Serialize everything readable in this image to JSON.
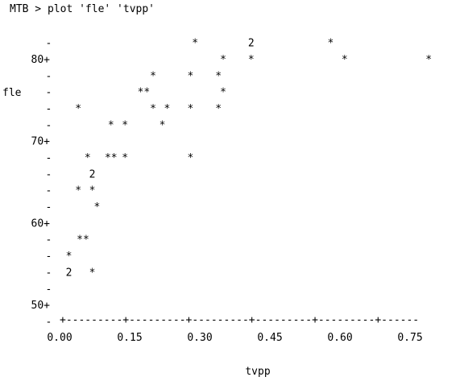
{
  "session": {
    "command": "MTB > plot 'fle' 'tvpp'"
  },
  "chart_data": {
    "type": "scatter",
    "title": "",
    "xlabel": "tvpp",
    "ylabel": "fle",
    "xlim": [
      0.0,
      0.75
    ],
    "ylim": [
      50,
      80
    ],
    "x_ticks": [
      0.0,
      0.15,
      0.3,
      0.45,
      0.6,
      0.75
    ],
    "x_tick_labels": [
      "0.00",
      "0.15",
      "0.30",
      "0.45",
      "0.60",
      "0.75"
    ],
    "y_ticks": [
      50,
      60,
      70,
      80
    ],
    "y_tick_labels": [
      "50+",
      "60+",
      "70+",
      "80+"
    ],
    "y_minor_tick": "-",
    "x_axis_rule": "+---------+---------+---------+---------+---------+------",
    "point_symbol": "*",
    "points": [
      {
        "x": 0.29,
        "y": 82,
        "symbol": "*"
      },
      {
        "x": 0.41,
        "y": 82,
        "symbol": "2"
      },
      {
        "x": 0.58,
        "y": 82,
        "symbol": "*"
      },
      {
        "x": 0.35,
        "y": 80,
        "symbol": "*"
      },
      {
        "x": 0.41,
        "y": 80,
        "symbol": "*"
      },
      {
        "x": 0.61,
        "y": 80,
        "symbol": "*"
      },
      {
        "x": 0.79,
        "y": 80,
        "symbol": "*"
      },
      {
        "x": 0.2,
        "y": 78,
        "symbol": "*"
      },
      {
        "x": 0.28,
        "y": 78,
        "symbol": "*"
      },
      {
        "x": 0.34,
        "y": 78,
        "symbol": "*"
      },
      {
        "x": 0.18,
        "y": 76,
        "symbol": "**"
      },
      {
        "x": 0.35,
        "y": 76,
        "symbol": "*"
      },
      {
        "x": 0.04,
        "y": 74,
        "symbol": "*"
      },
      {
        "x": 0.2,
        "y": 74,
        "symbol": "*"
      },
      {
        "x": 0.23,
        "y": 74,
        "symbol": "*"
      },
      {
        "x": 0.28,
        "y": 74,
        "symbol": "*"
      },
      {
        "x": 0.34,
        "y": 74,
        "symbol": "*"
      },
      {
        "x": 0.11,
        "y": 72,
        "symbol": "*"
      },
      {
        "x": 0.14,
        "y": 72,
        "symbol": "*"
      },
      {
        "x": 0.22,
        "y": 72,
        "symbol": "*"
      },
      {
        "x": 0.06,
        "y": 68,
        "symbol": "*"
      },
      {
        "x": 0.11,
        "y": 68,
        "symbol": "**"
      },
      {
        "x": 0.14,
        "y": 68,
        "symbol": "*"
      },
      {
        "x": 0.28,
        "y": 68,
        "symbol": "*"
      },
      {
        "x": 0.07,
        "y": 66,
        "symbol": "2"
      },
      {
        "x": 0.04,
        "y": 64,
        "symbol": "*"
      },
      {
        "x": 0.07,
        "y": 64,
        "symbol": "*"
      },
      {
        "x": 0.08,
        "y": 62,
        "symbol": "*"
      },
      {
        "x": 0.05,
        "y": 58,
        "symbol": "**"
      },
      {
        "x": 0.02,
        "y": 56,
        "symbol": "*"
      },
      {
        "x": 0.02,
        "y": 54,
        "symbol": "2"
      },
      {
        "x": 0.07,
        "y": 54,
        "symbol": "*"
      }
    ]
  }
}
